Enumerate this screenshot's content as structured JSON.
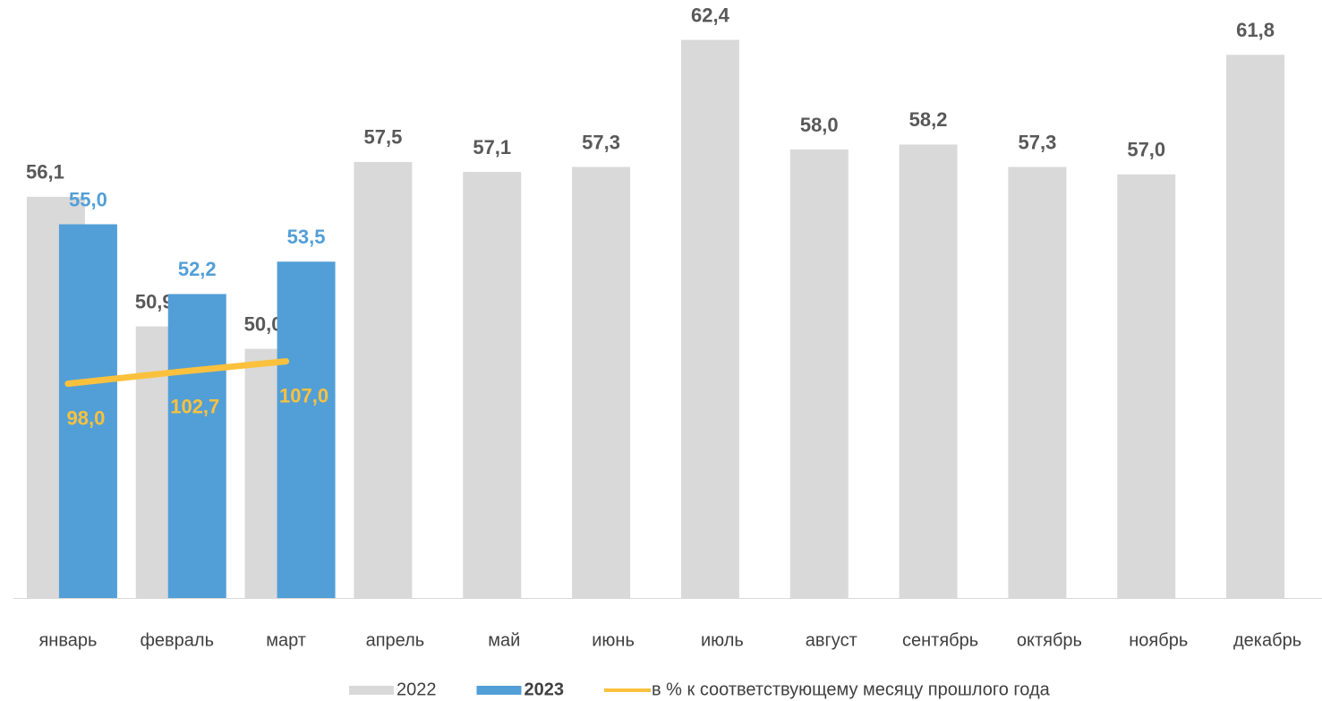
{
  "chart_data": {
    "type": "bar",
    "categories": [
      "январь",
      "февраль",
      "март",
      "апрель",
      "май",
      "июнь",
      "июль",
      "август",
      "сентябрь",
      "октябрь",
      "ноябрь",
      "декабрь"
    ],
    "series": [
      {
        "name": "2022",
        "color": "#d9d9d9",
        "label_color": "#595959",
        "values": [
          56.1,
          50.9,
          50.0,
          57.5,
          57.1,
          57.3,
          62.4,
          58.0,
          58.2,
          57.3,
          57.0,
          61.8
        ],
        "value_labels": [
          "56,1",
          "50,9",
          "50,0",
          "57,5",
          "57,1",
          "57,3",
          "62,4",
          "58,0",
          "58,2",
          "57,3",
          "57,0",
          "61,8"
        ]
      },
      {
        "name": "2023",
        "color": "#529fd7",
        "label_color": "#529fd7",
        "values": [
          55.0,
          52.2,
          53.5,
          null,
          null,
          null,
          null,
          null,
          null,
          null,
          null,
          null
        ],
        "value_labels": [
          "55,0",
          "52,2",
          "53,5",
          null,
          null,
          null,
          null,
          null,
          null,
          null,
          null,
          null
        ]
      },
      {
        "name": "в % к соответствующему месяцу прошлого года",
        "type": "line",
        "axis": "y2",
        "color": "#fbc13c",
        "label_color": "#fbc13c",
        "values": [
          98.0,
          102.7,
          107.0,
          null,
          null,
          null,
          null,
          null,
          null,
          null,
          null,
          null
        ],
        "value_labels": [
          "98,0",
          "102,7",
          "107,0",
          null,
          null,
          null,
          null,
          null,
          null,
          null,
          null,
          null
        ]
      }
    ],
    "ylim": [
      40,
      64
    ],
    "y2lim": [
      12,
      252
    ],
    "legend": "bottom"
  }
}
